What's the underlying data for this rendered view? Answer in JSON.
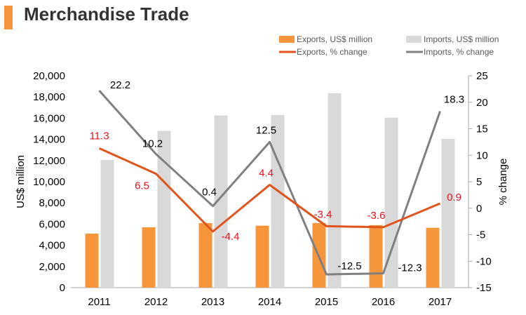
{
  "title": "Merchandise Trade",
  "colors": {
    "exports_bar": "#f7953b",
    "imports_bar": "#d9d9d9",
    "exports_line": "#e0541d",
    "imports_line": "#808080",
    "exports_label": "#e8101f",
    "text": "#000000",
    "title_accent": "#f7953b"
  },
  "chart_data": {
    "type": "bar",
    "categories": [
      "2011",
      "2012",
      "2013",
      "2014",
      "2015",
      "2016",
      "2017"
    ],
    "ylabel": "US$ million",
    "y2label": "% change",
    "ylim": [
      0,
      20000
    ],
    "y2lim": [
      -15,
      25
    ],
    "yticks": [
      "0",
      "2,000",
      "4,000",
      "6,000",
      "8,000",
      "10,000",
      "12,000",
      "14,000",
      "16,000",
      "18,000",
      "20,000"
    ],
    "y2ticks": [
      "-15",
      "-10",
      "-5",
      "0",
      "5",
      "10",
      "15",
      "20",
      "25"
    ],
    "legend_position": "top-right",
    "series": [
      {
        "name": "Exports, US$ million",
        "kind": "bar",
        "values": [
          5100,
          5700,
          6100,
          5850,
          6100,
          5900,
          5650
        ]
      },
      {
        "name": "Imports, US$ million",
        "kind": "bar",
        "values": [
          12050,
          14800,
          16250,
          16300,
          18350,
          16050,
          14050
        ]
      },
      {
        "name": "Exports, % change",
        "kind": "line",
        "axis": "right",
        "values": [
          11.3,
          6.5,
          -4.4,
          4.4,
          -3.4,
          -3.6,
          0.9
        ],
        "labels": [
          "11.3",
          "6.5",
          "-4.4",
          "4.4",
          "-3.4",
          "-3.6",
          "0.9"
        ]
      },
      {
        "name": "Imports, % change",
        "kind": "line",
        "axis": "right",
        "values": [
          22.2,
          10.2,
          0.4,
          12.5,
          -12.5,
          -12.3,
          18.3
        ],
        "labels": [
          "22.2",
          "10.2",
          "0.4",
          "12.5",
          "-12.5",
          "-12.3",
          "18.3"
        ]
      }
    ]
  }
}
